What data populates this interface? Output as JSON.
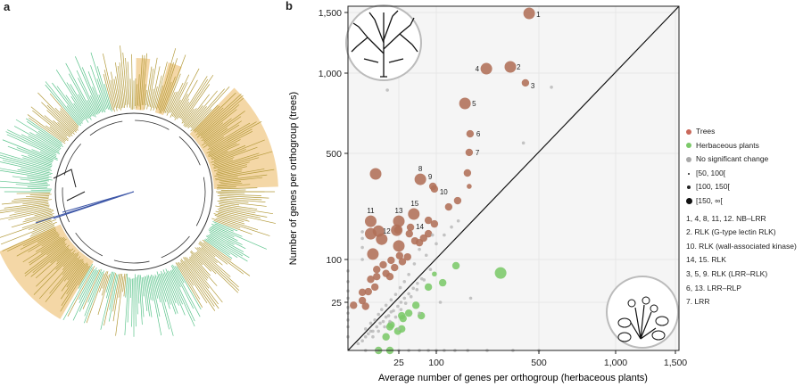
{
  "panels": {
    "a_label": "a",
    "b_label": "b"
  },
  "chart_data": {
    "type": "scatter",
    "xlabel": "Average number of genes per orthogroup (herbaceous plants)",
    "ylabel": "Number of genes per orthogroup (trees)",
    "x_scale": "square-root",
    "y_scale": "square-root",
    "xlim": [
      0,
      1550
    ],
    "ylim": [
      0,
      1550
    ],
    "x_ticks": [
      25,
      100,
      500,
      1000,
      1500
    ],
    "x_tick_labels": [
      "25",
      "100",
      "500",
      "1,000",
      "1,500"
    ],
    "y_ticks": [
      25,
      100,
      500,
      1000,
      1500
    ],
    "y_tick_labels": [
      "25",
      "100",
      "500",
      "1,000",
      "1,500"
    ],
    "grid": true,
    "diagonal_line": "y = x",
    "legend_position": "right",
    "colors": {
      "trees": "#b07a62",
      "herbaceous": "#7cc96a",
      "none": "#b4b4b4",
      "background": "#f5f5f5"
    },
    "legend": {
      "categories": [
        {
          "label": "Trees",
          "color": "#c9685a"
        },
        {
          "label": "Herbaceous plants",
          "color": "#7cc96a"
        },
        {
          "label": "No significant change",
          "color": "#a8a8a8"
        }
      ],
      "sizes": [
        "[50, 100[",
        "[100, 150[",
        "[150, ∞["
      ],
      "annotations": [
        "1, 4, 8, 11, 12. NB–LRR",
        "2. RLK (G-type lectin RLK)",
        "10. RLK (wall-associated kinase)",
        "14, 15. RLK",
        "3, 5, 9. RLK (LRR–RLK)",
        "6, 13. LRR–RLP",
        "7. LRR"
      ]
    },
    "series": [
      {
        "name": "Trees",
        "group": "trees",
        "points": [
          {
            "x": 449,
            "y": 1492,
            "size": 2,
            "label": "1"
          },
          {
            "x": 358,
            "y": 1047,
            "size": 2,
            "label": "2"
          },
          {
            "x": 430,
            "y": 930,
            "size": 1,
            "label": "3"
          },
          {
            "x": 257,
            "y": 1033,
            "size": 2,
            "label": "4"
          },
          {
            "x": 181,
            "y": 791,
            "size": 2,
            "label": "5"
          },
          {
            "x": 198,
            "y": 606,
            "size": 1,
            "label": "6"
          },
          {
            "x": 195,
            "y": 505,
            "size": 1,
            "label": "7"
          },
          {
            "x": 62,
            "y": 374,
            "size": 2,
            "label": "8"
          },
          {
            "x": 91,
            "y": 343,
            "size": 1,
            "label": "9"
          },
          {
            "x": 95,
            "y": 332,
            "size": 1,
            "label": "10"
          },
          {
            "x": 5,
            "y": 209,
            "size": 2,
            "label": "11"
          },
          {
            "x": 23,
            "y": 180,
            "size": 2,
            "label": "12"
          },
          {
            "x": 25,
            "y": 209,
            "size": 2,
            "label": "13"
          },
          {
            "x": 43,
            "y": 189,
            "size": 1,
            "label": "14"
          },
          {
            "x": 49,
            "y": 234,
            "size": 2,
            "label": "15"
          },
          {
            "x": 7.4,
            "y": 399,
            "size": 2
          },
          {
            "x": 189,
            "y": 403,
            "size": 1
          },
          {
            "x": 195,
            "y": 343,
            "size": 0
          },
          {
            "x": 158,
            "y": 284,
            "size": 1
          },
          {
            "x": 132,
            "y": 260,
            "size": 1
          },
          {
            "x": 9,
            "y": 177,
            "size": 2
          },
          {
            "x": 5,
            "y": 169,
            "size": 2
          },
          {
            "x": 11,
            "y": 153,
            "size": 2
          },
          {
            "x": 6,
            "y": 113,
            "size": 2
          },
          {
            "x": 24,
            "y": 180,
            "size": 1
          },
          {
            "x": 25,
            "y": 134,
            "size": 2
          },
          {
            "x": 41,
            "y": 169,
            "size": 1
          },
          {
            "x": 51,
            "y": 148,
            "size": 1
          },
          {
            "x": 60,
            "y": 143,
            "size": 1
          },
          {
            "x": 69,
            "y": 156,
            "size": 1
          },
          {
            "x": 80,
            "y": 169,
            "size": 1
          },
          {
            "x": 80,
            "y": 212,
            "size": 1
          },
          {
            "x": 95,
            "y": 200,
            "size": 1
          },
          {
            "x": 38,
            "y": 106,
            "size": 1
          },
          {
            "x": 26,
            "y": 109,
            "size": 1
          },
          {
            "x": 18,
            "y": 98,
            "size": 1
          },
          {
            "x": 12,
            "y": 88,
            "size": 1
          },
          {
            "x": 8,
            "y": 78,
            "size": 1
          },
          {
            "x": 21,
            "y": 82,
            "size": 1
          },
          {
            "x": 17,
            "y": 64,
            "size": 1
          },
          {
            "x": 8,
            "y": 64,
            "size": 1
          },
          {
            "x": 5,
            "y": 59,
            "size": 1
          },
          {
            "x": 7,
            "y": 46,
            "size": 1
          },
          {
            "x": 4,
            "y": 39,
            "size": 1
          },
          {
            "x": 2,
            "y": 38,
            "size": 1
          },
          {
            "x": 2,
            "y": 27,
            "size": 1
          },
          {
            "x": 0.3,
            "y": 22,
            "size": 1
          },
          {
            "x": 3,
            "y": 21,
            "size": 1
          },
          {
            "x": 14,
            "y": 70,
            "size": 1
          },
          {
            "x": 30,
            "y": 95,
            "size": 1
          }
        ]
      },
      {
        "name": "Herbaceous plants",
        "group": "herbaceous",
        "points": [
          {
            "x": 315,
            "y": 71,
            "size": 2
          },
          {
            "x": 153,
            "y": 86,
            "size": 1
          },
          {
            "x": 95,
            "y": 69,
            "size": 0
          },
          {
            "x": 116,
            "y": 53,
            "size": 1
          },
          {
            "x": 80,
            "y": 46,
            "size": 1
          },
          {
            "x": 53,
            "y": 22,
            "size": 1
          },
          {
            "x": 64,
            "y": 13,
            "size": 1
          },
          {
            "x": 40,
            "y": 15,
            "size": 1
          },
          {
            "x": 29,
            "y": 13,
            "size": 1
          },
          {
            "x": 31,
            "y": 11,
            "size": 1
          },
          {
            "x": 18,
            "y": 7,
            "size": 1
          },
          {
            "x": 17,
            "y": 6,
            "size": 1
          },
          {
            "x": 24,
            "y": 4,
            "size": 1
          },
          {
            "x": 29,
            "y": 5,
            "size": 1
          },
          {
            "x": 14,
            "y": 2,
            "size": 1
          },
          {
            "x": 9,
            "y": 0,
            "size": 1
          },
          {
            "x": 17,
            "y": 0,
            "size": 1
          }
        ]
      },
      {
        "name": "No significant change",
        "group": "none",
        "points": [
          {
            "x": 1,
            "y": 0.5
          },
          {
            "x": 2,
            "y": 1
          },
          {
            "x": 3,
            "y": 2
          },
          {
            "x": 4,
            "y": 3
          },
          {
            "x": 5,
            "y": 4
          },
          {
            "x": 6,
            "y": 4
          },
          {
            "x": 8,
            "y": 6
          },
          {
            "x": 10,
            "y": 8
          },
          {
            "x": 12,
            "y": 9
          },
          {
            "x": 14,
            "y": 12
          },
          {
            "x": 16,
            "y": 13
          },
          {
            "x": 18,
            "y": 16
          },
          {
            "x": 20,
            "y": 17
          },
          {
            "x": 24,
            "y": 21
          },
          {
            "x": 28,
            "y": 25
          },
          {
            "x": 33,
            "y": 30
          },
          {
            "x": 40,
            "y": 36
          },
          {
            "x": 48,
            "y": 44
          },
          {
            "x": 56,
            "y": 52
          },
          {
            "x": 65,
            "y": 60
          },
          {
            "x": 3,
            "y": 5
          },
          {
            "x": 5,
            "y": 8
          },
          {
            "x": 7,
            "y": 10
          },
          {
            "x": 9,
            "y": 14
          },
          {
            "x": 11,
            "y": 18
          },
          {
            "x": 14,
            "y": 22
          },
          {
            "x": 18,
            "y": 28
          },
          {
            "x": 22,
            "y": 35
          },
          {
            "x": 27,
            "y": 45
          },
          {
            "x": 33,
            "y": 55
          },
          {
            "x": 40,
            "y": 68
          },
          {
            "x": 6,
            "y": 2
          },
          {
            "x": 9,
            "y": 4
          },
          {
            "x": 13,
            "y": 6
          },
          {
            "x": 17,
            "y": 9
          },
          {
            "x": 22,
            "y": 12
          },
          {
            "x": 28,
            "y": 18
          },
          {
            "x": 35,
            "y": 24
          },
          {
            "x": 44,
            "y": 32
          },
          {
            "x": 55,
            "y": 42
          },
          {
            "x": 70,
            "y": 58
          },
          {
            "x": 85,
            "y": 78
          },
          {
            "x": 75,
            "y": 110
          },
          {
            "x": 60,
            "y": 125
          },
          {
            "x": 100,
            "y": 140
          },
          {
            "x": 120,
            "y": 165
          },
          {
            "x": 140,
            "y": 190
          },
          {
            "x": 160,
            "y": 210
          },
          {
            "x": 90,
            "y": 165
          },
          {
            "x": 50,
            "y": 90
          },
          {
            "x": 0,
            "y": 2
          },
          {
            "x": 0,
            "y": 6
          },
          {
            "x": 0,
            "y": 10
          },
          {
            "x": 0,
            "y": 15
          },
          {
            "x": 0,
            "y": 20
          },
          {
            "x": 0,
            "y": 30
          },
          {
            "x": 0,
            "y": 40
          },
          {
            "x": 0,
            "y": 55
          },
          {
            "x": 0,
            "y": 75
          },
          {
            "x": 2,
            "y": 100
          },
          {
            "x": 2,
            "y": 130
          },
          {
            "x": 2,
            "y": 155
          },
          {
            "x": 2,
            "y": 175
          },
          {
            "x": 3,
            "y": 0
          },
          {
            "x": 8,
            "y": 0
          },
          {
            "x": 25,
            "y": 0
          },
          {
            "x": 40,
            "y": 0
          },
          {
            "x": 60,
            "y": 0
          },
          {
            "x": 80,
            "y": 0
          },
          {
            "x": 100,
            "y": 0
          },
          {
            "x": 120,
            "y": 0
          },
          {
            "x": 150,
            "y": 0
          },
          {
            "x": 190,
            "y": 0
          },
          {
            "x": 260,
            "y": 0
          },
          {
            "x": 370,
            "y": 0
          },
          {
            "x": 500,
            "y": 0
          },
          {
            "x": 25,
            "y": 5
          },
          {
            "x": 60,
            "y": 15
          },
          {
            "x": 110,
            "y": 25
          },
          {
            "x": 200,
            "y": 30
          },
          {
            "x": 15,
            "y": 880
          },
          {
            "x": 570,
            "y": 900
          },
          {
            "x": 420,
            "y": 555
          }
        ]
      }
    ]
  },
  "tree_panel": {
    "colors": {
      "branch_olive": "#b39a3a",
      "branch_green": "#5cc48c",
      "highlight": "#f4d7a6",
      "inner": "#333333",
      "root": "#3f58a8"
    }
  }
}
